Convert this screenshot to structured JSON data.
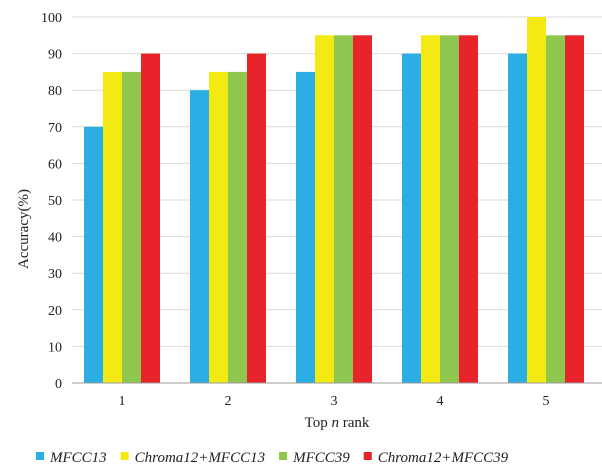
{
  "chart_data": {
    "type": "bar",
    "title": "",
    "xlabel_prefix": "Top ",
    "xlabel_var": "n",
    "xlabel_suffix": " rank",
    "ylabel": "Accuracy(%)",
    "categories": [
      "1",
      "2",
      "3",
      "4",
      "5"
    ],
    "ylim": [
      0,
      100
    ],
    "yticks": [
      0,
      10,
      20,
      30,
      40,
      50,
      60,
      70,
      80,
      90,
      100
    ],
    "grid": true,
    "legend_position": "bottom",
    "series": [
      {
        "name": "MFCC13",
        "color": "#2aaee4",
        "values": [
          70,
          80,
          85,
          90,
          90
        ]
      },
      {
        "name": "Chroma12+MFCC13",
        "color": "#f2ea12",
        "values": [
          85,
          85,
          95,
          95,
          100
        ]
      },
      {
        "name": "MFCC39",
        "color": "#8ec64f",
        "values": [
          85,
          85,
          95,
          95,
          95
        ]
      },
      {
        "name": "Chroma12+MFCC39",
        "color": "#e8232a",
        "values": [
          90,
          90,
          95,
          95,
          95
        ]
      }
    ]
  }
}
